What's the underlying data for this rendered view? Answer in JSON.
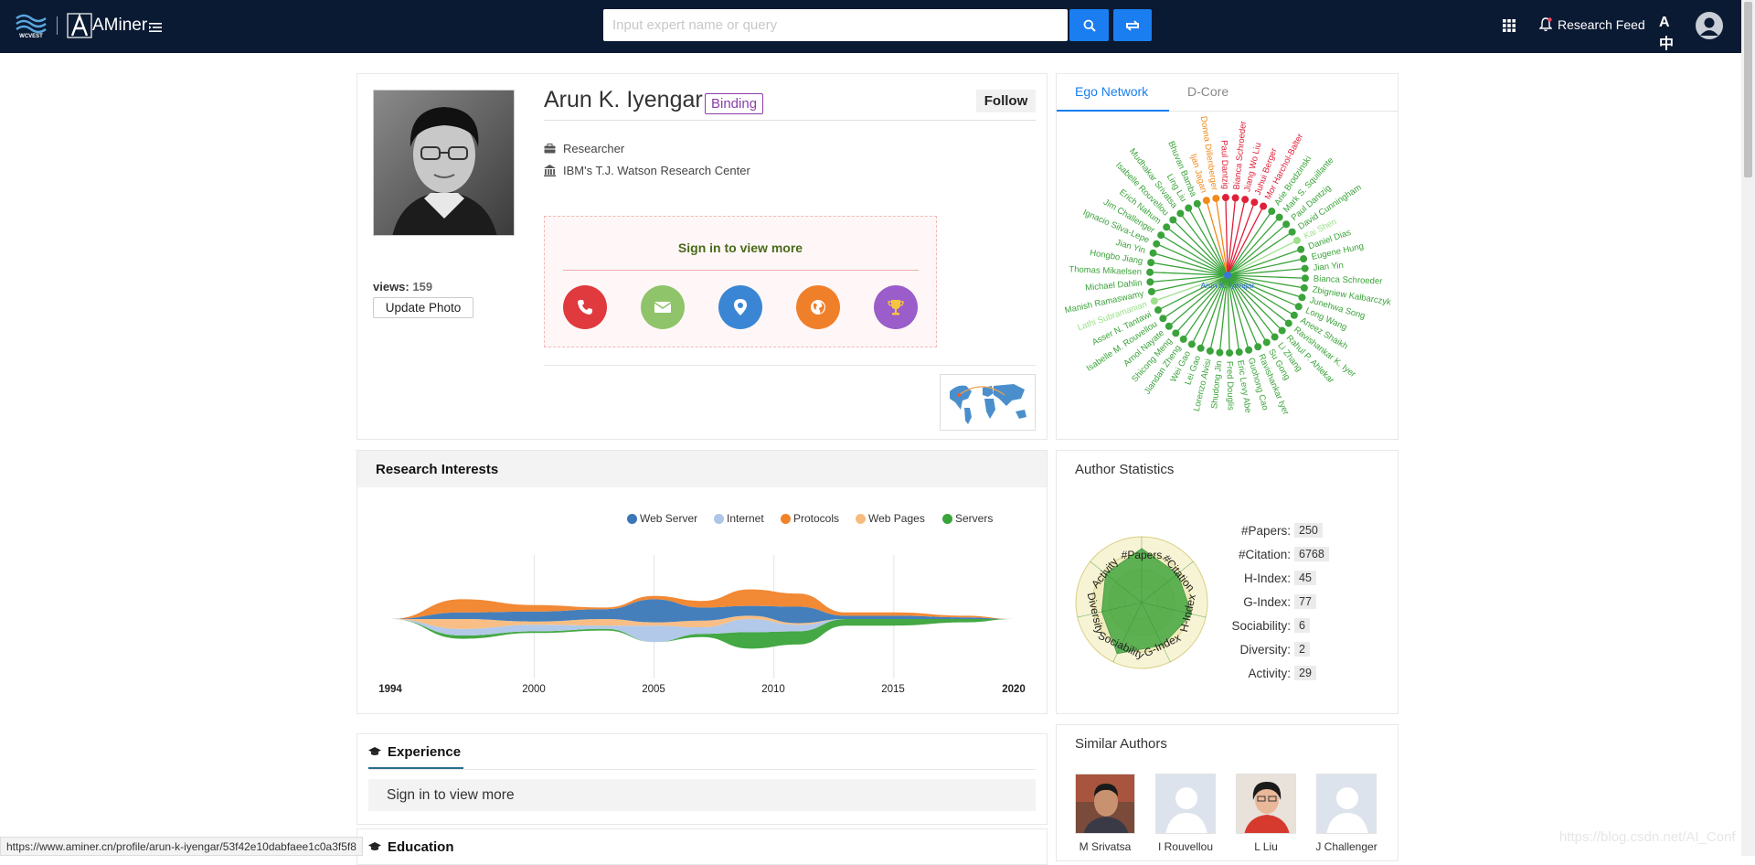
{
  "topbar": {
    "brand": "AMiner",
    "search_placeholder": "Input expert name or query",
    "research_feed": "Research Feed",
    "lang_icon": "A中",
    "icons": [
      "menu-toggle-icon",
      "search-icon",
      "swap-icon",
      "apps-grid-icon",
      "bell-icon",
      "translate-icon",
      "user-avatar-icon"
    ]
  },
  "profile": {
    "name": "Arun K. Iyengar",
    "binding": "Binding",
    "follow": "Follow",
    "views_label": "views:",
    "views": "159",
    "update_photo": "Update Photo",
    "position": "Researcher",
    "affiliation": "IBM's T.J. Watson Research Center",
    "signin": "Sign in to view more",
    "contact_icons": [
      {
        "name": "phone-icon",
        "color": "#e0393e"
      },
      {
        "name": "email-icon",
        "color": "#8fc46a"
      },
      {
        "name": "location-icon",
        "color": "#3a86d4"
      },
      {
        "name": "homepage-icon",
        "color": "#f07f2a"
      },
      {
        "name": "award-icon",
        "color": "#9a5dc9"
      }
    ]
  },
  "ego_network": {
    "tabs": [
      "Ego Network",
      "D-Core"
    ],
    "active_tab": "Ego Network",
    "center": "Arun K. Iyengar",
    "nodes": [
      "Bhuvan Bamba",
      "Ijan Jagan",
      "Donna Dillenberger",
      "Paul Dantzig",
      "Bianca Schroeder",
      "Jiang Wo Liu",
      "Juhui Berger",
      "Mor Harchol-Balter",
      "Arie Brodzinski",
      "Mark S. Squillante",
      "Paul Dantzig",
      "David Cunningham",
      "Kai Shen",
      "Daniel Dias",
      "Eugene Hung",
      "Jian Yin",
      "Bianca Schroeder",
      "Zbigniew Kalbarczyk",
      "Junehwa Song",
      "Long Wang",
      "Aneez Shaikh",
      "Ravishankar K. Iyer",
      "Rahul P. Ahlekar",
      "Li Zhang",
      "Su Gong",
      "Ravishankar Iyer",
      "Guohong Cao",
      "Eric Levy Abe",
      "Fred Douglis",
      "Shudong Jin",
      "Lorenzo Alvisi",
      "Lei Gao",
      "Wei Gao",
      "Jiandan Zheng",
      "Shicong Meng",
      "Arnol Nayate",
      "Isabelle M. Rouvellou",
      "Asser N. Tantawi",
      "Lathi Subramanian",
      "Manish Ramaswamy",
      "Michael Dahlin",
      "Thomas Mikaelsen",
      "Hongbo Jiang",
      "Jian Yin",
      "Ignacio Silva-Lepe",
      "Jim Challenger",
      "Erich Nahum",
      "Isabelle Rouvellou",
      "Mudhakar Srivatsa",
      "Ling Liu"
    ]
  },
  "research_interests": {
    "title": "Research Interests",
    "legend": [
      {
        "name": "Web Server",
        "color": "#3a78b8"
      },
      {
        "name": "Internet",
        "color": "#aec6e8"
      },
      {
        "name": "Protocols",
        "color": "#f0832a"
      },
      {
        "name": "Web Pages",
        "color": "#f8bb7e"
      },
      {
        "name": "Servers",
        "color": "#3aa33a"
      }
    ],
    "years": [
      "1994",
      "2000",
      "2005",
      "2010",
      "2015",
      "2020"
    ]
  },
  "chart_data": {
    "type": "area",
    "title": "Research Interests",
    "x": [
      1994,
      1997,
      2000,
      2003,
      2005,
      2007,
      2009,
      2011,
      2013,
      2015,
      2018,
      2020
    ],
    "series": [
      {
        "name": "Web Server",
        "values": [
          0,
          2,
          3,
          3,
          7,
          4,
          3,
          5,
          1,
          1,
          0.5,
          0
        ]
      },
      {
        "name": "Internet",
        "values": [
          0,
          2,
          2,
          1,
          5,
          2,
          4,
          2,
          0,
          0,
          0,
          0
        ]
      },
      {
        "name": "Protocols",
        "values": [
          0,
          4,
          2,
          0.5,
          1,
          2,
          5,
          4,
          1,
          1,
          0.5,
          0
        ]
      },
      {
        "name": "Web Pages",
        "values": [
          0,
          3,
          1,
          2,
          1,
          2,
          1,
          0.5,
          0,
          0,
          0,
          0
        ]
      },
      {
        "name": "Servers",
        "values": [
          0,
          1,
          0.5,
          0.5,
          0,
          1,
          5,
          4,
          2,
          2,
          1,
          0
        ]
      }
    ]
  },
  "author_stats": {
    "title": "Author Statistics",
    "radar_axes": [
      "#Papers",
      "#Citation",
      "H-Index",
      "G-Index",
      "Sociability",
      "Diversity",
      "Activity"
    ],
    "rows": [
      {
        "label": "#Papers:",
        "value": "250"
      },
      {
        "label": "#Citation:",
        "value": "6768"
      },
      {
        "label": "H-Index:",
        "value": "45"
      },
      {
        "label": "G-Index:",
        "value": "77"
      },
      {
        "label": "Sociability:",
        "value": "6"
      },
      {
        "label": "Diversity:",
        "value": "2"
      },
      {
        "label": "Activity:",
        "value": "29"
      }
    ]
  },
  "experience": {
    "title": "Experience",
    "signin": "Sign in to view more"
  },
  "education": {
    "title": "Education"
  },
  "similar_authors": {
    "title": "Similar Authors",
    "authors": [
      "M Srivatsa",
      "I Rouvellou",
      "L Liu",
      "J Challenger"
    ]
  },
  "statusbar": {
    "url": "https://www.aminer.cn/profile/arun-k-iyengar/53f42e10dabfaee1c0a3f5f8"
  },
  "watermark": "https://blog.csdn.net/AI_Conf"
}
